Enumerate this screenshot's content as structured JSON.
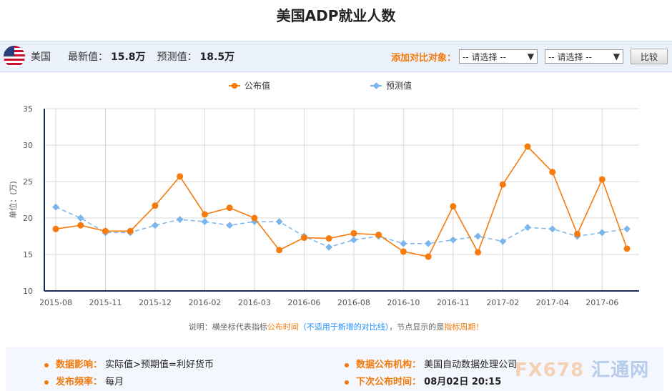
{
  "title": "美国ADP就业人数",
  "info": {
    "country": "美国",
    "latest_label": "最新值：",
    "latest_value": "15.8万",
    "forecast_label": "预测值：",
    "forecast_value": "18.5万",
    "compare_label": "添加对比对象：",
    "select1": "-- 请选择 --",
    "select2": "-- 请选择 --",
    "compare_button": "比较"
  },
  "chart_data": {
    "type": "line",
    "ylabel": "单位：(万)",
    "ylim": [
      10,
      35
    ],
    "yticks": [
      10,
      15,
      20,
      25,
      30,
      35
    ],
    "grid": true,
    "legend_position": "top",
    "x_tick_labels": [
      "2015-08",
      "",
      "2015-11",
      "",
      "2015-12",
      "",
      "2016-02",
      "",
      "2016-03",
      "",
      "2016-06",
      "",
      "2016-08",
      "",
      "2016-10",
      "",
      "2016-11",
      "",
      "2017-02",
      "",
      "2017-04",
      "",
      "2017-06",
      ""
    ],
    "series": [
      {
        "name": "公布值",
        "color": "#f77b0c",
        "values": [
          18.5,
          19.0,
          18.2,
          18.2,
          21.7,
          25.7,
          20.5,
          21.4,
          20.0,
          15.6,
          17.3,
          17.2,
          17.9,
          17.7,
          15.4,
          14.7,
          21.6,
          15.3,
          24.6,
          29.8,
          26.3,
          17.8,
          25.3,
          15.8
        ]
      },
      {
        "name": "预测值",
        "color": "#7cb5ec",
        "values": [
          21.5,
          20.0,
          18.0,
          18.0,
          19.0,
          19.8,
          19.5,
          19.0,
          19.5,
          19.5,
          17.5,
          16.0,
          17.0,
          17.5,
          16.5,
          16.5,
          17.0,
          17.5,
          16.8,
          18.7,
          18.5,
          17.5,
          18.0,
          18.5
        ]
      }
    ]
  },
  "note": {
    "p1": "说明：横坐标代表指标",
    "p2": "公布时间",
    "p3": "（不适用于新增的对比线）",
    "p4": "，节点显示的是",
    "p5": "指标周期",
    "p6": "！"
  },
  "footer": {
    "impact_label": "数据影响：",
    "impact_value": "实际值>预期值=利好货币",
    "freq_label": "发布频率：",
    "freq_value": "每月",
    "org_label": "数据公布机构：",
    "org_value": "美国自动数据处理公司",
    "next_label": "下次公布时间：",
    "next_value": "08月02日 20:15"
  },
  "watermark": "FX678 汇通网"
}
